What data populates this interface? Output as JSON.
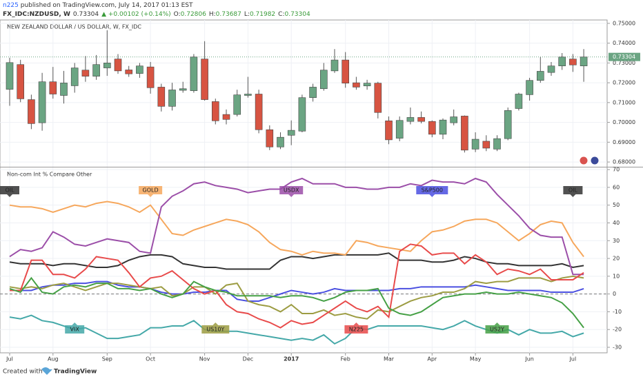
{
  "header": {
    "publisher": "n225",
    "published": " published on TradingView.com, July 14, 2017 01:13 EST",
    "symbol": "FX_IDC:NZDUSD, W",
    "last": "0.73304",
    "change": "▲ +0.00102 (+0.14%)",
    "ohlc": [
      {
        "k": "O:",
        "v": "0.72806"
      },
      {
        "k": "H:",
        "v": "0.73687"
      },
      {
        "k": "L:",
        "v": "0.71982"
      },
      {
        "k": "C:",
        "v": "0.73304"
      }
    ]
  },
  "footer": {
    "created": "Created with",
    "brand": "TradingView"
  },
  "chart_data": [
    {
      "type": "candlestick",
      "title": "NEW ZEALAND DOLLAR / US DOLLAR, W, FX_IDC",
      "grid": true,
      "up_color": "#6ba583",
      "down_color": "#d75442",
      "categories": [
        "Jul",
        null,
        null,
        null,
        "Aug",
        null,
        null,
        null,
        null,
        "Sep",
        null,
        null,
        null,
        "Oct",
        null,
        null,
        null,
        null,
        "Nov",
        null,
        null,
        null,
        "Dec",
        null,
        null,
        null,
        "2017",
        null,
        null,
        null,
        null,
        "Feb",
        null,
        null,
        null,
        "Mar",
        null,
        null,
        null,
        "Apr",
        null,
        null,
        null,
        "May",
        null,
        null,
        null,
        null,
        "Jun",
        null,
        null,
        null,
        "Jul",
        null
      ],
      "open": [
        0.7167,
        0.7292,
        0.7115,
        0.6998,
        0.7205,
        0.7136,
        0.7185,
        0.7264,
        0.7233,
        0.7275,
        0.732,
        0.7265,
        0.7247,
        0.728,
        0.7178,
        0.7081,
        0.7162,
        0.716,
        0.732,
        0.7105,
        0.704,
        0.704,
        0.7136,
        0.7143,
        0.6963,
        0.6876,
        0.6935,
        0.6956,
        0.7125,
        0.717,
        0.726,
        0.7315,
        0.72,
        0.7184,
        0.7198,
        0.7008,
        0.692,
        0.7005,
        0.7025,
        0.7005,
        0.694,
        0.6998,
        0.7032,
        0.6865,
        0.6905,
        0.6865,
        0.6918,
        0.707,
        0.714,
        0.7212,
        0.7252,
        0.7285,
        0.732,
        0.7285
      ],
      "high": [
        0.7326,
        0.7316,
        0.714,
        0.725,
        0.728,
        0.726,
        0.73,
        0.7335,
        0.734,
        0.7465,
        0.7345,
        0.7285,
        0.73,
        0.7305,
        0.7195,
        0.72,
        0.7205,
        0.7345,
        0.741,
        0.712,
        0.7065,
        0.7165,
        0.723,
        0.7165,
        0.6985,
        0.695,
        0.701,
        0.714,
        0.7195,
        0.73,
        0.737,
        0.7355,
        0.723,
        0.7215,
        0.7205,
        0.703,
        0.703,
        0.7075,
        0.7055,
        0.701,
        0.702,
        0.7065,
        0.7035,
        0.695,
        0.6935,
        0.6935,
        0.7075,
        0.715,
        0.7225,
        0.733,
        0.7305,
        0.735,
        0.7345,
        0.737
      ],
      "low": [
        0.7084,
        0.7102,
        0.6966,
        0.6958,
        0.712,
        0.7095,
        0.715,
        0.7205,
        0.7215,
        0.7235,
        0.7245,
        0.723,
        0.7225,
        0.7145,
        0.7055,
        0.706,
        0.715,
        0.715,
        0.711,
        0.699,
        0.699,
        0.703,
        0.7125,
        0.6945,
        0.686,
        0.6865,
        0.6885,
        0.695,
        0.7105,
        0.716,
        0.725,
        0.7175,
        0.7165,
        0.7165,
        0.702,
        0.689,
        0.6905,
        0.699,
        0.6995,
        0.6925,
        0.6915,
        0.6985,
        0.6848,
        0.685,
        0.6855,
        0.6855,
        0.691,
        0.706,
        0.711,
        0.72,
        0.7235,
        0.7265,
        0.7255,
        0.7205
      ],
      "close": [
        0.7302,
        0.7119,
        0.6994,
        0.7205,
        0.7143,
        0.7199,
        0.7275,
        0.7233,
        0.7292,
        0.73,
        0.726,
        0.7245,
        0.7285,
        0.7175,
        0.7081,
        0.7164,
        0.717,
        0.733,
        0.7115,
        0.7008,
        0.7015,
        0.7139,
        0.7143,
        0.6963,
        0.6876,
        0.6925,
        0.696,
        0.7125,
        0.7178,
        0.7264,
        0.7315,
        0.7198,
        0.7178,
        0.7198,
        0.705,
        0.6912,
        0.701,
        0.7025,
        0.7005,
        0.694,
        0.7012,
        0.7028,
        0.686,
        0.6915,
        0.687,
        0.6918,
        0.706,
        0.7143,
        0.7212,
        0.7258,
        0.7285,
        0.733,
        0.729,
        0.733
      ],
      "ylim": [
        0.6776,
        0.7517
      ],
      "yticks": [
        {
          "value": 0.68,
          "label": "0.68000"
        },
        {
          "value": 0.69,
          "label": "0.69000"
        },
        {
          "value": 0.7,
          "label": "0.70000"
        },
        {
          "value": 0.71,
          "label": "0.71000"
        },
        {
          "value": 0.72,
          "label": "0.72000"
        },
        {
          "value": 0.73,
          "label": "0.73000"
        },
        {
          "value": 0.74,
          "label": "0.74000"
        },
        {
          "value": 0.75,
          "label": "0.75000"
        }
      ],
      "last_price": {
        "value": 0.73304,
        "label": "0.73304"
      }
    },
    {
      "type": "line",
      "title": "Non-com Int % Compare Other",
      "grid": true,
      "zero_line": true,
      "ylim": [
        -33.1,
        71.2
      ],
      "yticks": [
        -30,
        -20,
        -10,
        0,
        10,
        20,
        30,
        40,
        50,
        60,
        70
      ],
      "series": [
        {
          "name": "OIL",
          "color": "#333333",
          "values": [
            18,
            17,
            17,
            17,
            16,
            17,
            17,
            16,
            15,
            15,
            16,
            19,
            21,
            22,
            22,
            21,
            17,
            16,
            15,
            15,
            14,
            14,
            14,
            14,
            14,
            19,
            21,
            21,
            20,
            21,
            22,
            22,
            22,
            22,
            22,
            23,
            19,
            19,
            19,
            18,
            18,
            19,
            21,
            20,
            18,
            17,
            17,
            16,
            16,
            16,
            16,
            17,
            15,
            16
          ]
        },
        {
          "name": "GOLD",
          "color": "#f6a75c",
          "values": [
            50,
            49,
            49,
            48,
            46,
            48,
            50,
            49,
            51,
            52,
            51,
            49,
            46,
            50,
            42,
            34,
            33,
            36,
            38,
            40,
            42,
            41,
            39,
            35,
            29,
            25,
            24,
            22,
            24,
            23,
            23,
            22,
            30,
            29,
            27,
            26,
            25,
            24,
            30,
            35,
            36,
            38,
            41,
            42,
            42,
            40,
            35,
            30,
            34,
            39,
            41,
            40,
            29,
            21
          ]
        },
        {
          "name": "USDX",
          "color": "#9b4ea8",
          "values": [
            21,
            25,
            24,
            26,
            35,
            32,
            28,
            27,
            29,
            31,
            30,
            29,
            24,
            23,
            49,
            55,
            58,
            62,
            63,
            61,
            60,
            59,
            57,
            58,
            59,
            59,
            63,
            65,
            62,
            62,
            62,
            60,
            60,
            59,
            59,
            60,
            60,
            62,
            61,
            64,
            63,
            63,
            62,
            65,
            63,
            56,
            50,
            44,
            37,
            33,
            32,
            32,
            11,
            11
          ]
        },
        {
          "name": "S&P500",
          "color": "#4a4fe0",
          "values": [
            2,
            2,
            2,
            4,
            5,
            5,
            6,
            6,
            7,
            7,
            5,
            4,
            4,
            3,
            1,
            0,
            0,
            1,
            1,
            2,
            2,
            -3,
            -4,
            -4,
            -2,
            0,
            2,
            1,
            0,
            1,
            3,
            2,
            2,
            2,
            2,
            2,
            3,
            3,
            4,
            4,
            4,
            4,
            4,
            5,
            4,
            3,
            2,
            2,
            2,
            2,
            1,
            1,
            1,
            3
          ]
        },
        {
          "name": "VIX",
          "color": "#44a8a8",
          "values": [
            -13,
            -14,
            -12,
            -15,
            -16,
            -18,
            -20,
            -19,
            -22,
            -25,
            -25,
            -24,
            -23,
            -19,
            -19,
            -18,
            -18,
            -15,
            -20,
            -21,
            -21,
            -21,
            -22,
            -23,
            -24,
            -25,
            -26,
            -25,
            -26,
            -23,
            -28,
            -25,
            -19,
            -20,
            -18,
            -18,
            -18,
            -18,
            -18,
            -19,
            -20,
            -18,
            -15,
            -18,
            -20,
            -22,
            -20,
            -23,
            -20,
            -22,
            -22,
            -21,
            -24,
            -22
          ]
        },
        {
          "name": "US10Y",
          "color": "#9c9c42",
          "values": [
            4,
            3,
            4,
            3,
            5,
            6,
            4,
            2,
            4,
            6,
            6,
            5,
            4,
            3,
            4,
            -1,
            0,
            4,
            4,
            0,
            5,
            6,
            -4,
            -6,
            -7,
            -10,
            -6,
            -11,
            -11,
            -9,
            -12,
            -11,
            -13,
            -14,
            -9,
            -10,
            -7,
            -4,
            -2,
            -1,
            1,
            1,
            3,
            7,
            6,
            7,
            7,
            9,
            9,
            9,
            7,
            9,
            10,
            9
          ]
        },
        {
          "name": "N225",
          "color": "#e84a4a",
          "values": [
            2,
            2,
            19,
            19,
            11,
            11,
            9,
            14,
            21,
            20,
            19,
            12,
            4,
            9,
            10,
            13,
            8,
            3,
            0,
            2,
            -6,
            -10,
            -11,
            -14,
            -16,
            -19,
            -15,
            -17,
            -16,
            -12,
            -8,
            -4,
            -8,
            -10,
            -7,
            -13,
            24,
            28,
            27,
            22,
            23,
            23,
            17,
            22,
            18,
            11,
            14,
            13,
            11,
            14,
            8,
            8,
            8,
            12
          ]
        },
        {
          "name": "US2Y",
          "color": "#45a045",
          "values": [
            3,
            1,
            9,
            1,
            0,
            4,
            5,
            4,
            6,
            6,
            3,
            3,
            2,
            3,
            0,
            -2,
            0,
            7,
            4,
            2,
            1,
            -1,
            -1,
            -1,
            -1,
            -2,
            -1,
            -1,
            -2,
            -4,
            -2,
            1,
            2,
            2,
            3,
            -8,
            -11,
            -12,
            -10,
            -6,
            -2,
            -1,
            0,
            0,
            1,
            0,
            0,
            1,
            0,
            -1,
            -2,
            -5,
            -11,
            -19
          ]
        }
      ]
    }
  ]
}
